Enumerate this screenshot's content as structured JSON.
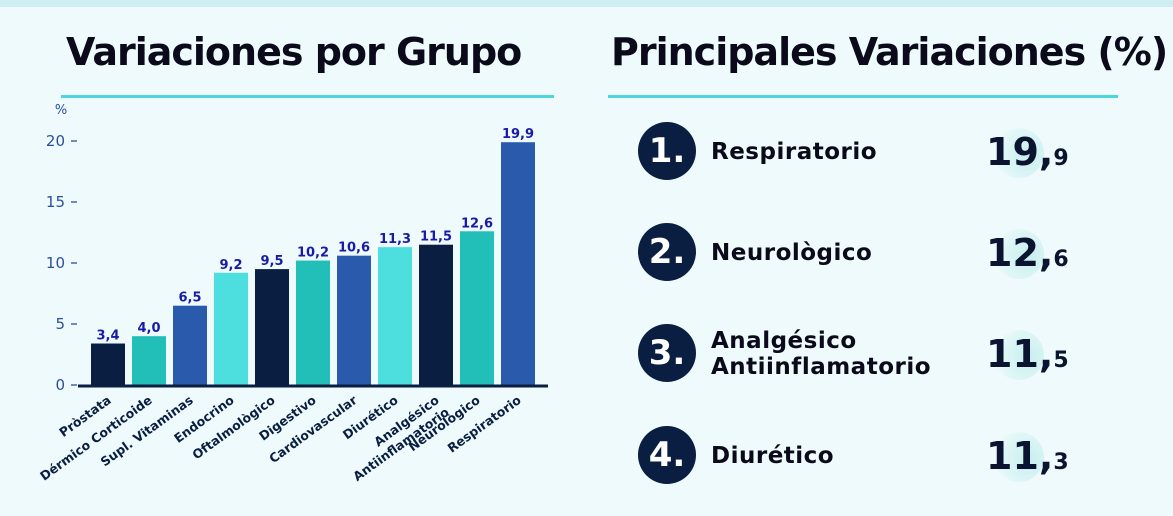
{
  "left_title": "Variaciones por Grupo",
  "right_title": "Principales Variaciones (%)",
  "chart_data": {
    "type": "bar",
    "ylabel": "%",
    "ylim": [
      0,
      21
    ],
    "yticks": [
      0,
      5,
      10,
      15,
      20
    ],
    "categories": [
      "Pròstata",
      "Dérmico Corticoide",
      "Supl. Vitaminas",
      "Endocrino",
      "Oftalmològico",
      "Digestivo",
      "Cardiovascular",
      "Diurético",
      "Analgésico Antiinflamatorio",
      "Neurològico",
      "Respiratorio"
    ],
    "values": [
      3.4,
      4.0,
      6.5,
      9.2,
      9.5,
      10.2,
      10.6,
      11.3,
      11.5,
      12.6,
      19.9
    ],
    "labels": [
      "3,4",
      "4,0",
      "6,5",
      "9,2",
      "9,5",
      "10,2",
      "10,6",
      "11,3",
      "11,5",
      "12,6",
      "19,9"
    ],
    "colors": [
      "#0a1e42",
      "#22bfb8",
      "#2a5aab",
      "#4ddfde",
      "#0a1e42",
      "#22bfb8",
      "#2a5aab",
      "#4ddfde",
      "#0a1e42",
      "#22bfb8",
      "#2a5aab"
    ],
    "value_label_color": "#1a1aa8",
    "tick_color": "#2a4fa0",
    "axis_color": "#0a1e42"
  },
  "ranking": [
    {
      "rank": "1.",
      "label": "Respiratorio",
      "int": "19,",
      "dec": "9"
    },
    {
      "rank": "2.",
      "label": "Neurològico",
      "int": "12,",
      "dec": "6"
    },
    {
      "rank": "3.",
      "label": "Analgésico Antiinflamatorio",
      "int": "11,",
      "dec": "5"
    },
    {
      "rank": "4.",
      "label": "Diurético",
      "int": "11,",
      "dec": "3"
    }
  ]
}
